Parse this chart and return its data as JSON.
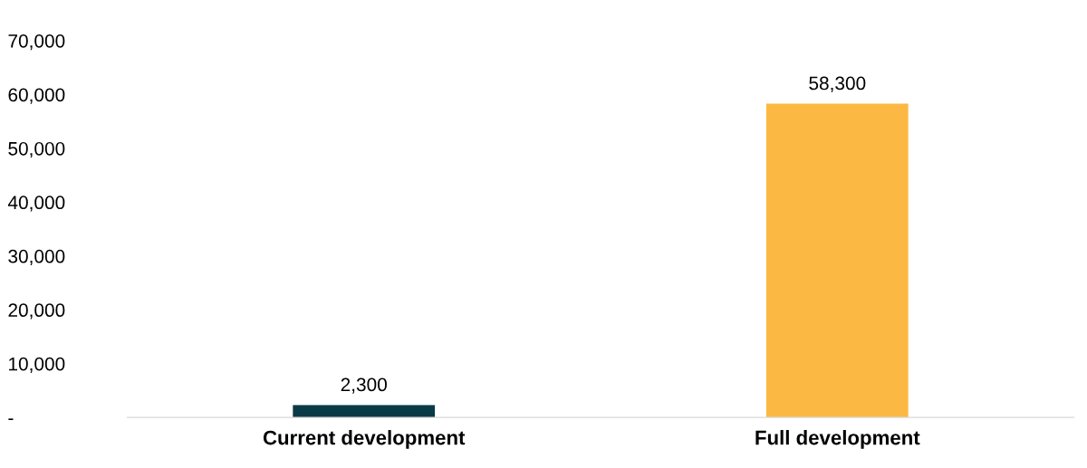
{
  "chart_data": {
    "type": "bar",
    "categories": [
      "Current development",
      "Full development"
    ],
    "values": [
      2300,
      58300
    ],
    "colors": [
      "#0b3a47",
      "#fbb943"
    ],
    "value_labels": [
      "2,300",
      "58,300"
    ],
    "ylim": [
      0,
      70000
    ],
    "yticks": [
      {
        "value": 0,
        "label": "-"
      },
      {
        "value": 10000,
        "label": "10,000"
      },
      {
        "value": 20000,
        "label": "20,000"
      },
      {
        "value": 30000,
        "label": "30,000"
      },
      {
        "value": 40000,
        "label": "40,000"
      },
      {
        "value": 50000,
        "label": "50,000"
      },
      {
        "value": 60000,
        "label": "60,000"
      },
      {
        "value": 70000,
        "label": "70,000"
      }
    ],
    "grid": false,
    "legend": false
  }
}
